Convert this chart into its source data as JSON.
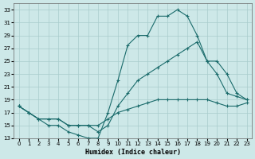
{
  "xlabel": "Humidex (Indice chaleur)",
  "ylabel": "",
  "background_color": "#cde8e8",
  "grid_color": "#a8cccc",
  "line_color": "#1a6b6b",
  "xlim": [
    -0.5,
    23.5
  ],
  "ylim": [
    13,
    34
  ],
  "xticks": [
    0,
    1,
    2,
    3,
    4,
    5,
    6,
    7,
    8,
    9,
    10,
    11,
    12,
    13,
    14,
    15,
    16,
    17,
    18,
    19,
    20,
    21,
    22,
    23
  ],
  "yticks": [
    13,
    15,
    17,
    19,
    21,
    23,
    25,
    27,
    29,
    31,
    33
  ],
  "line1_x": [
    0,
    1,
    2,
    3,
    4,
    5,
    6,
    7,
    8,
    9,
    10,
    11,
    12,
    13,
    14,
    15,
    16,
    17,
    18,
    19,
    20,
    21,
    22,
    23
  ],
  "line1_y": [
    18,
    17,
    16,
    15,
    15,
    14,
    13.5,
    13,
    13,
    17,
    22,
    27.5,
    29,
    29,
    32,
    32,
    33,
    32,
    29,
    25,
    23,
    20,
    19.5,
    19
  ],
  "line2_x": [
    0,
    1,
    2,
    3,
    4,
    5,
    6,
    7,
    8,
    9,
    10,
    11,
    12,
    13,
    14,
    15,
    16,
    17,
    18,
    19,
    20,
    21,
    22,
    23
  ],
  "line2_y": [
    18,
    17,
    16,
    16,
    16,
    15,
    15,
    15,
    14,
    15,
    18,
    20,
    22,
    23,
    24,
    25,
    26,
    27,
    28,
    25,
    25,
    23,
    20,
    19
  ],
  "line3_x": [
    0,
    1,
    2,
    3,
    4,
    5,
    6,
    7,
    8,
    9,
    10,
    11,
    12,
    13,
    14,
    15,
    16,
    17,
    18,
    19,
    20,
    21,
    22,
    23
  ],
  "line3_y": [
    18,
    17,
    16,
    16,
    16,
    15,
    15,
    15,
    15,
    16,
    17,
    17.5,
    18,
    18.5,
    19,
    19,
    19,
    19,
    19,
    19,
    18.5,
    18,
    18,
    18.5
  ]
}
